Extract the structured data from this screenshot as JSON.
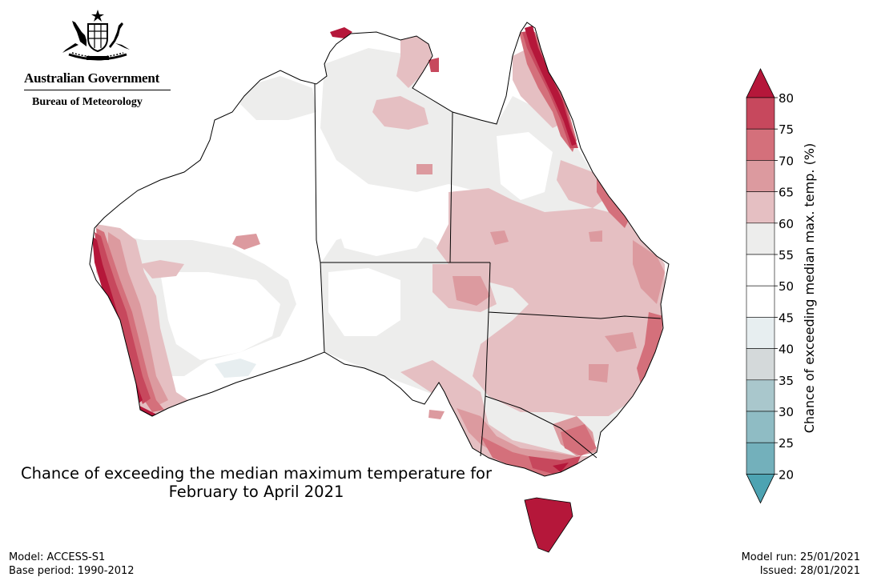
{
  "logo": {
    "government": "Australian Government",
    "bureau": "Bureau of Meteorology",
    "emblem": "coat-of-arms-icon"
  },
  "title": {
    "line1": "Chance of exceeding the median maximum temperature for",
    "line2": "February to April 2021"
  },
  "footer": {
    "model": "Model: ACCESS-S1",
    "base_period": "Base period: 1990-2012",
    "model_run": "Model run: 25/01/2021",
    "issued": "Issued: 28/01/2021"
  },
  "legend": {
    "label": "Chance of exceeding median max. temp. (%)",
    "ticks": [
      "80",
      "75",
      "70",
      "65",
      "60",
      "55",
      "50",
      "45",
      "40",
      "35",
      "30",
      "25",
      "20"
    ],
    "colors": {
      "above_80": "#b5173a",
      "75_80": "#c7485d",
      "70_75": "#d4707b",
      "65_70": "#dc9a9f",
      "60_65": "#e5bfc2",
      "55_60": "#ededec",
      "50_55": "#ffffff",
      "45_50": "#ffffff",
      "40_45": "#e7eef0",
      "35_40": "#d4d9da",
      "30_35": "#a9c7cc",
      "25_30": "#8fbcc4",
      "20_25": "#73b0bb",
      "below_20": "#4da3b2"
    }
  },
  "map_colors": {
    "land": "#ffffff",
    "neutral": "#ededec",
    "light_warm": "#e5bfc2",
    "mid_warm": "#dc9a9f",
    "warm": "#d4707b",
    "hot": "#c7485d",
    "very_hot": "#b5173a",
    "cool": "#e7eef0",
    "outline": "#000000"
  }
}
